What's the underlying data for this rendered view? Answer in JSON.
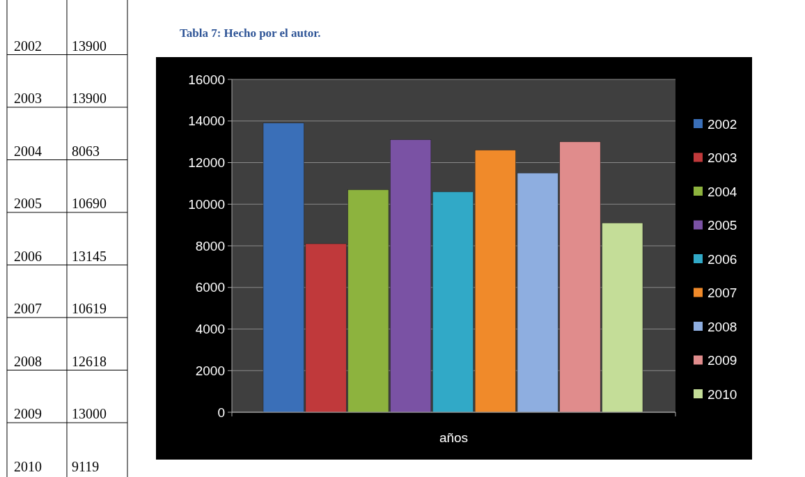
{
  "chart_data": {
    "type": "bar",
    "title": "Tabla 7: Hecho por el autor.",
    "xlabel": "años",
    "categories": [
      null
    ],
    "series": [
      {
        "name": "2002",
        "color": "#3a6fb8",
        "values": [
          13900
        ]
      },
      {
        "name": "2003",
        "color": "#c0393b",
        "values": [
          8100
        ]
      },
      {
        "name": "2004",
        "color": "#8db33e",
        "values": [
          10700
        ]
      },
      {
        "name": "2005",
        "color": "#7a52a4",
        "values": [
          13100
        ]
      },
      {
        "name": "2006",
        "color": "#31a9c7",
        "values": [
          10600
        ]
      },
      {
        "name": "2007",
        "color": "#f08a2a",
        "values": [
          12600
        ]
      },
      {
        "name": "2008",
        "color": "#8eaee0",
        "values": [
          11500
        ]
      },
      {
        "name": "2009",
        "color": "#e08c8c",
        "values": [
          13000
        ]
      },
      {
        "name": "2010",
        "color": "#c4dd98",
        "values": [
          9100
        ]
      }
    ],
    "ylim": [
      0,
      16000
    ],
    "yticks": [
      0,
      2000,
      4000,
      6000,
      8000,
      10000,
      12000,
      14000,
      16000
    ],
    "grid": "y",
    "legend": "right",
    "annotations": [
      "2002",
      "13900",
      "2003",
      "13900",
      "2004",
      "8063",
      "2005",
      "10690",
      "2006",
      "13145",
      "2007",
      "10619",
      "2008",
      "12618",
      "2009",
      "13000",
      "2010",
      "9119"
    ]
  }
}
